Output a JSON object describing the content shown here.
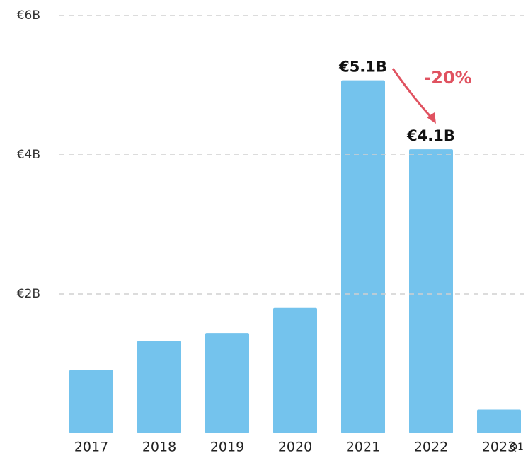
{
  "chart_data": {
    "type": "bar",
    "categories": [
      "2017",
      "2018",
      "2019",
      "2020",
      "2021",
      "2022",
      "2023"
    ],
    "values": [
      0.91,
      1.33,
      1.44,
      1.8,
      5.07,
      4.08,
      0.34
    ],
    "value_labels": [
      null,
      null,
      null,
      null,
      "€5.1B",
      "€4.1B",
      null
    ],
    "color": "#74c3ed",
    "ylim": [
      0,
      6
    ],
    "yticks": [
      {
        "value": 2,
        "label": "€2B"
      },
      {
        "value": 4,
        "label": "€4B"
      },
      {
        "value": 6,
        "label": "€6B"
      }
    ],
    "grid": true,
    "annotations": [
      "-20%",
      "Q1"
    ]
  }
}
